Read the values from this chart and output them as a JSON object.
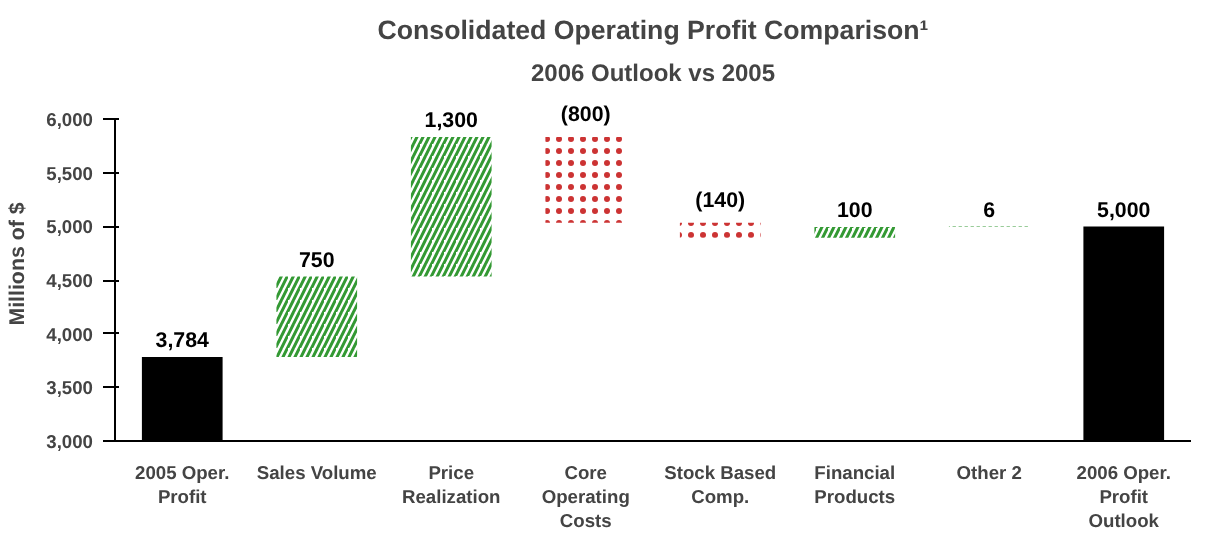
{
  "chart_data": {
    "type": "bar",
    "title": "Consolidated Operating Profit Comparison¹",
    "subtitle": "2006 Outlook vs 2005",
    "ylabel": "Millions of $",
    "categories": [
      "2005 Oper. Profit",
      "Sales Volume",
      "Price Realization",
      "Core Operating Costs",
      "Stock Based Comp.",
      "Financial Products",
      "Other 2",
      "2006 Oper. Profit Outlook"
    ],
    "values": [
      3784,
      750,
      1300,
      -800,
      -140,
      100,
      6,
      5000
    ],
    "base": [
      null,
      3784,
      4534,
      5834,
      5034,
      4894,
      4994,
      null
    ],
    "colors": [
      "#000000",
      "#339933",
      "#339933",
      "#cc3333",
      "#cc3333",
      "#339933",
      "#339933",
      "#000000"
    ],
    "value_labels": [
      "3,784",
      "750",
      "1,300",
      "(800)",
      "(140)",
      "100",
      "6",
      "5,000"
    ],
    "ylim": [
      3000,
      6000
    ],
    "yticks": [
      {
        "value": 3000,
        "label": "3,000"
      },
      {
        "value": 3500,
        "label": "3,500"
      },
      {
        "value": 4000,
        "label": "4,000"
      },
      {
        "value": 4500,
        "label": "4,500"
      },
      {
        "value": 5000,
        "label": "5,000"
      },
      {
        "value": 5500,
        "label": "5,500"
      },
      {
        "value": 6000,
        "label": "6,000"
      }
    ],
    "grid": false
  }
}
